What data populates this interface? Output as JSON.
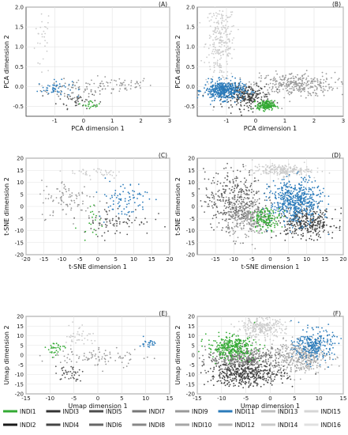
{
  "chart_data": [
    {
      "panel_label": "(A)",
      "type": "scatter",
      "xlabel": "PCA dimension 1",
      "ylabel": "PCA dimension 2",
      "xlim": [
        -2,
        3
      ],
      "ylim": [
        -0.75,
        2.0
      ],
      "grid": true,
      "xticks": [
        -1,
        0,
        1,
        2,
        3
      ],
      "yticks": [
        -0.5,
        0.0,
        0.5,
        1.0,
        1.5,
        2.0
      ],
      "xtick_labels": [
        "-1",
        "0",
        "1",
        "2",
        "3"
      ],
      "ytick_labels": [
        "-0.5",
        "0.0",
        "0.5",
        "1.0",
        "1.5",
        "2.0"
      ],
      "clusters": [
        {
          "series": "INDI13",
          "color": "#cccccc",
          "cx": -1.4,
          "cy": 1.2,
          "sx": 0.15,
          "sy": 0.45,
          "n": 30
        },
        {
          "series": "INDI9",
          "color": "#888888",
          "cx": -0.3,
          "cy": -0.1,
          "sx": 0.6,
          "sy": 0.12,
          "n": 60
        },
        {
          "series": "INDI7",
          "color": "#999999",
          "cx": 1.2,
          "cy": 0.05,
          "sx": 0.6,
          "sy": 0.1,
          "n": 60
        },
        {
          "series": "INDI3",
          "color": "#555555",
          "cx": -0.2,
          "cy": -0.35,
          "sx": 0.35,
          "sy": 0.1,
          "n": 40
        },
        {
          "series": "INDI11",
          "color": "#2b7bba",
          "cx": -1.0,
          "cy": -0.05,
          "sx": 0.3,
          "sy": 0.1,
          "n": 50
        },
        {
          "series": "INDI1",
          "color": "#33aa33",
          "cx": 0.3,
          "cy": -0.45,
          "sx": 0.15,
          "sy": 0.05,
          "n": 20
        }
      ]
    },
    {
      "panel_label": "(B)",
      "type": "scatter",
      "xlabel": "PCA dimension 1",
      "ylabel": "PCA dimension 2",
      "xlim": [
        -2,
        3
      ],
      "ylim": [
        -0.75,
        2.0
      ],
      "grid": true,
      "xticks": [
        -1,
        0,
        1,
        2,
        3
      ],
      "yticks": [
        -0.5,
        0.0,
        0.5,
        1.0,
        1.5,
        2.0
      ],
      "xtick_labels": [
        "-1",
        "0",
        "1",
        "2",
        "3"
      ],
      "ytick_labels": [
        "-0.5",
        "0.0",
        "0.5",
        "1.0",
        "1.5",
        "2.0"
      ],
      "clusters": [
        {
          "series": "INDI13",
          "color": "#cccccc",
          "cx": -1.2,
          "cy": 1.1,
          "sx": 0.25,
          "sy": 0.5,
          "n": 260
        },
        {
          "series": "INDI9",
          "color": "#999999",
          "cx": 1.3,
          "cy": 0.05,
          "sx": 0.7,
          "sy": 0.15,
          "n": 320
        },
        {
          "series": "INDI5",
          "color": "#444444",
          "cx": -0.3,
          "cy": -0.25,
          "sx": 0.4,
          "sy": 0.15,
          "n": 260
        },
        {
          "series": "INDI11",
          "color": "#2b7bba",
          "cx": -1.1,
          "cy": -0.1,
          "sx": 0.35,
          "sy": 0.12,
          "n": 420
        },
        {
          "series": "INDI1",
          "color": "#33aa33",
          "cx": 0.35,
          "cy": -0.48,
          "sx": 0.15,
          "sy": 0.06,
          "n": 160
        }
      ]
    },
    {
      "panel_label": "(C)",
      "type": "scatter",
      "xlabel": "t-SNE dimension 1",
      "ylabel": "t-SNE dimension 2",
      "xlim": [
        -20,
        20
      ],
      "ylim": [
        -20,
        20
      ],
      "grid": true,
      "xticks": [
        -20,
        -15,
        -10,
        -5,
        0,
        5,
        10,
        15,
        20
      ],
      "yticks": [
        -20,
        -15,
        -10,
        -5,
        0,
        5,
        10,
        15,
        20
      ],
      "xtick_labels": [
        "-20",
        "-15",
        "-10",
        "-5",
        "0",
        "5",
        "10",
        "15",
        "20"
      ],
      "ytick_labels": [
        "-20",
        "-15",
        "-10",
        "-5",
        "0",
        "5",
        "10",
        "15",
        "20"
      ],
      "clusters": [
        {
          "series": "INDI13",
          "color": "#cccccc",
          "cx": 0,
          "cy": 14,
          "sx": 4,
          "sy": 1.2,
          "n": 40
        },
        {
          "series": "INDI9",
          "color": "#999999",
          "cx": -8,
          "cy": 3,
          "sx": 4,
          "sy": 4,
          "n": 90
        },
        {
          "series": "INDI5",
          "color": "#555555",
          "cx": 5,
          "cy": -6,
          "sx": 5,
          "sy": 3,
          "n": 80
        },
        {
          "series": "INDI11",
          "color": "#2b7bba",
          "cx": 7,
          "cy": 3,
          "sx": 3.5,
          "sy": 4,
          "n": 80
        },
        {
          "series": "INDI1",
          "color": "#33aa33",
          "cx": -2,
          "cy": -5,
          "sx": 1.5,
          "sy": 3,
          "n": 18
        }
      ]
    },
    {
      "panel_label": "(D)",
      "type": "scatter",
      "xlabel": "t-SNE dimension 1",
      "ylabel": "t-SNE dimension 2",
      "xlim": [
        -20,
        20
      ],
      "ylim": [
        -20,
        20
      ],
      "grid": true,
      "xticks": [
        -15,
        -10,
        -5,
        0,
        5,
        10,
        15,
        20
      ],
      "yticks": [
        -20,
        -15,
        -10,
        -5,
        0,
        5,
        10,
        15,
        20
      ],
      "xtick_labels": [
        "-15",
        "-10",
        "-5",
        "0",
        "5",
        "10",
        "15",
        "20"
      ],
      "ytick_labels": [
        "-20",
        "-15",
        "-10",
        "-5",
        "0",
        "5",
        "10",
        "15",
        "20"
      ],
      "clusters": [
        {
          "series": "INDI13",
          "color": "#cccccc",
          "cx": 3,
          "cy": 15,
          "sx": 4,
          "sy": 1.2,
          "n": 220
        },
        {
          "series": "INDI7",
          "color": "#666666",
          "cx": -10,
          "cy": 3,
          "sx": 4,
          "sy": 6,
          "n": 380
        },
        {
          "series": "INDI9",
          "color": "#999999",
          "cx": -6,
          "cy": -5,
          "sx": 3,
          "sy": 4,
          "n": 260
        },
        {
          "series": "INDI5",
          "color": "#444444",
          "cx": 10,
          "cy": -7,
          "sx": 4,
          "sy": 3,
          "n": 320
        },
        {
          "series": "INDI11",
          "color": "#2b7bba",
          "cx": 7,
          "cy": 2,
          "sx": 3.5,
          "sy": 4.5,
          "n": 520
        },
        {
          "series": "INDI1",
          "color": "#33aa33",
          "cx": -1,
          "cy": -5,
          "sx": 2,
          "sy": 2.2,
          "n": 140
        }
      ]
    },
    {
      "panel_label": "(E)",
      "type": "scatter",
      "xlabel": "Umap dimension 1",
      "ylabel": "Umap dimension 2",
      "xlim": [
        -15,
        15
      ],
      "ylim": [
        -20,
        20
      ],
      "grid": true,
      "xticks": [
        -15,
        -10,
        -5,
        0,
        5,
        10,
        15
      ],
      "yticks": [
        -20,
        -15,
        -10,
        -5,
        0,
        5,
        10,
        15,
        20
      ],
      "xtick_labels": [
        "-15",
        "-10",
        "-5",
        "0",
        "5",
        "10",
        "15"
      ],
      "ytick_labels": [
        "-20",
        "-15",
        "-10",
        "-5",
        "0",
        "5",
        "10",
        "15",
        "20"
      ],
      "clusters": [
        {
          "series": "INDI13",
          "color": "#cccccc",
          "cx": -4,
          "cy": 10,
          "sx": 1.5,
          "sy": 3,
          "n": 40
        },
        {
          "series": "INDI9",
          "color": "#999999",
          "cx": 0,
          "cy": -1,
          "sx": 5,
          "sy": 2.5,
          "n": 90
        },
        {
          "series": "INDI5",
          "color": "#555555",
          "cx": -6,
          "cy": -9,
          "sx": 1.5,
          "sy": 2,
          "n": 40
        },
        {
          "series": "INDI11",
          "color": "#2b7bba",
          "cx": 10.5,
          "cy": 6,
          "sx": 0.8,
          "sy": 1.2,
          "n": 25
        },
        {
          "series": "INDI1",
          "color": "#33aa33",
          "cx": -9,
          "cy": 3,
          "sx": 1,
          "sy": 2,
          "n": 30
        }
      ]
    },
    {
      "panel_label": "(F)",
      "type": "scatter",
      "xlabel": "Umap dimension 1",
      "ylabel": "Umap dimension 2",
      "xlim": [
        -15,
        15
      ],
      "ylim": [
        -20,
        20
      ],
      "grid": true,
      "xticks": [
        -15,
        -10,
        -5,
        0,
        5,
        10,
        15
      ],
      "yticks": [
        -20,
        -15,
        -10,
        -5,
        0,
        5,
        10,
        15,
        20
      ],
      "xtick_labels": [
        "-15",
        "-10",
        "-5",
        "0",
        "5",
        "10",
        "15"
      ],
      "ytick_labels": [
        "-20",
        "-15",
        "-10",
        "-5",
        "0",
        "5",
        "10",
        "15",
        "20"
      ],
      "clusters": [
        {
          "series": "INDI13",
          "color": "#cccccc",
          "cx": -2,
          "cy": 14,
          "sx": 2.5,
          "sy": 2.5,
          "n": 260
        },
        {
          "series": "INDI7",
          "color": "#777777",
          "cx": -5,
          "cy": -2,
          "sx": 4,
          "sy": 3,
          "n": 420
        },
        {
          "series": "INDI5",
          "color": "#444444",
          "cx": -5,
          "cy": -10,
          "sx": 4,
          "sy": 3,
          "n": 420
        },
        {
          "series": "INDI9",
          "color": "#aaaaaa",
          "cx": 6,
          "cy": -1,
          "sx": 3,
          "sy": 4,
          "n": 380
        },
        {
          "series": "INDI11",
          "color": "#2b7bba",
          "cx": 9,
          "cy": 5,
          "sx": 2,
          "sy": 4,
          "n": 260
        },
        {
          "series": "INDI1",
          "color": "#33aa33",
          "cx": -8,
          "cy": 4,
          "sx": 2.5,
          "sy": 3,
          "n": 300
        }
      ]
    }
  ],
  "legend": {
    "placement": "bottom",
    "items": [
      {
        "label": "INDI1",
        "color": "#33aa33"
      },
      {
        "label": "INDI2",
        "color": "#1a1a1a"
      },
      {
        "label": "INDI3",
        "color": "#333333"
      },
      {
        "label": "INDI4",
        "color": "#444444"
      },
      {
        "label": "INDI5",
        "color": "#4d4d4d"
      },
      {
        "label": "INDI6",
        "color": "#666666"
      },
      {
        "label": "INDI7",
        "color": "#777777"
      },
      {
        "label": "INDI8",
        "color": "#888888"
      },
      {
        "label": "INDI9",
        "color": "#999999"
      },
      {
        "label": "INDI10",
        "color": "#a6a6a6"
      },
      {
        "label": "INDI11",
        "color": "#2b7bba"
      },
      {
        "label": "INDI12",
        "color": "#b3b3b3"
      },
      {
        "label": "INDI13",
        "color": "#bfbfbf"
      },
      {
        "label": "INDI14",
        "color": "#c9c9c9"
      },
      {
        "label": "INDI15",
        "color": "#d6d6d6"
      },
      {
        "label": "INDI16",
        "color": "#e0e0e0"
      }
    ]
  }
}
